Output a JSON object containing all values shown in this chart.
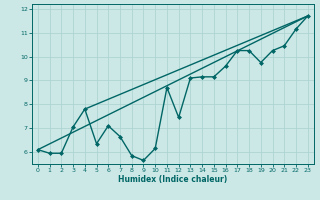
{
  "title": "",
  "xlabel": "Humidex (Indice chaleur)",
  "ylabel": "",
  "xlim": [
    -0.5,
    23.5
  ],
  "ylim": [
    5.5,
    12.2
  ],
  "yticks": [
    6,
    7,
    8,
    9,
    10,
    11,
    12
  ],
  "xticks": [
    0,
    1,
    2,
    3,
    4,
    5,
    6,
    7,
    8,
    9,
    10,
    11,
    12,
    13,
    14,
    15,
    16,
    17,
    18,
    19,
    20,
    21,
    22,
    23
  ],
  "background_color": "#cce8e6",
  "grid_color": "#aed4d2",
  "line_color": "#006666",
  "line_width": 1.0,
  "marker": "D",
  "marker_size": 2.0,
  "series": [
    {
      "x": [
        0,
        1,
        2,
        3,
        4,
        5,
        6,
        7,
        8,
        9,
        10,
        11,
        12,
        13,
        14,
        15,
        16,
        17,
        18,
        19,
        20,
        21,
        22,
        23
      ],
      "y": [
        6.1,
        5.95,
        5.95,
        7.05,
        7.8,
        6.35,
        7.1,
        6.65,
        5.85,
        5.65,
        6.15,
        8.7,
        7.45,
        9.1,
        9.15,
        9.15,
        9.6,
        10.25,
        10.25,
        9.75,
        10.25,
        10.45,
        11.15,
        11.7
      ]
    },
    {
      "x": [
        0,
        23
      ],
      "y": [
        6.1,
        11.7
      ]
    },
    {
      "x": [
        4,
        23
      ],
      "y": [
        7.8,
        11.7
      ]
    }
  ]
}
